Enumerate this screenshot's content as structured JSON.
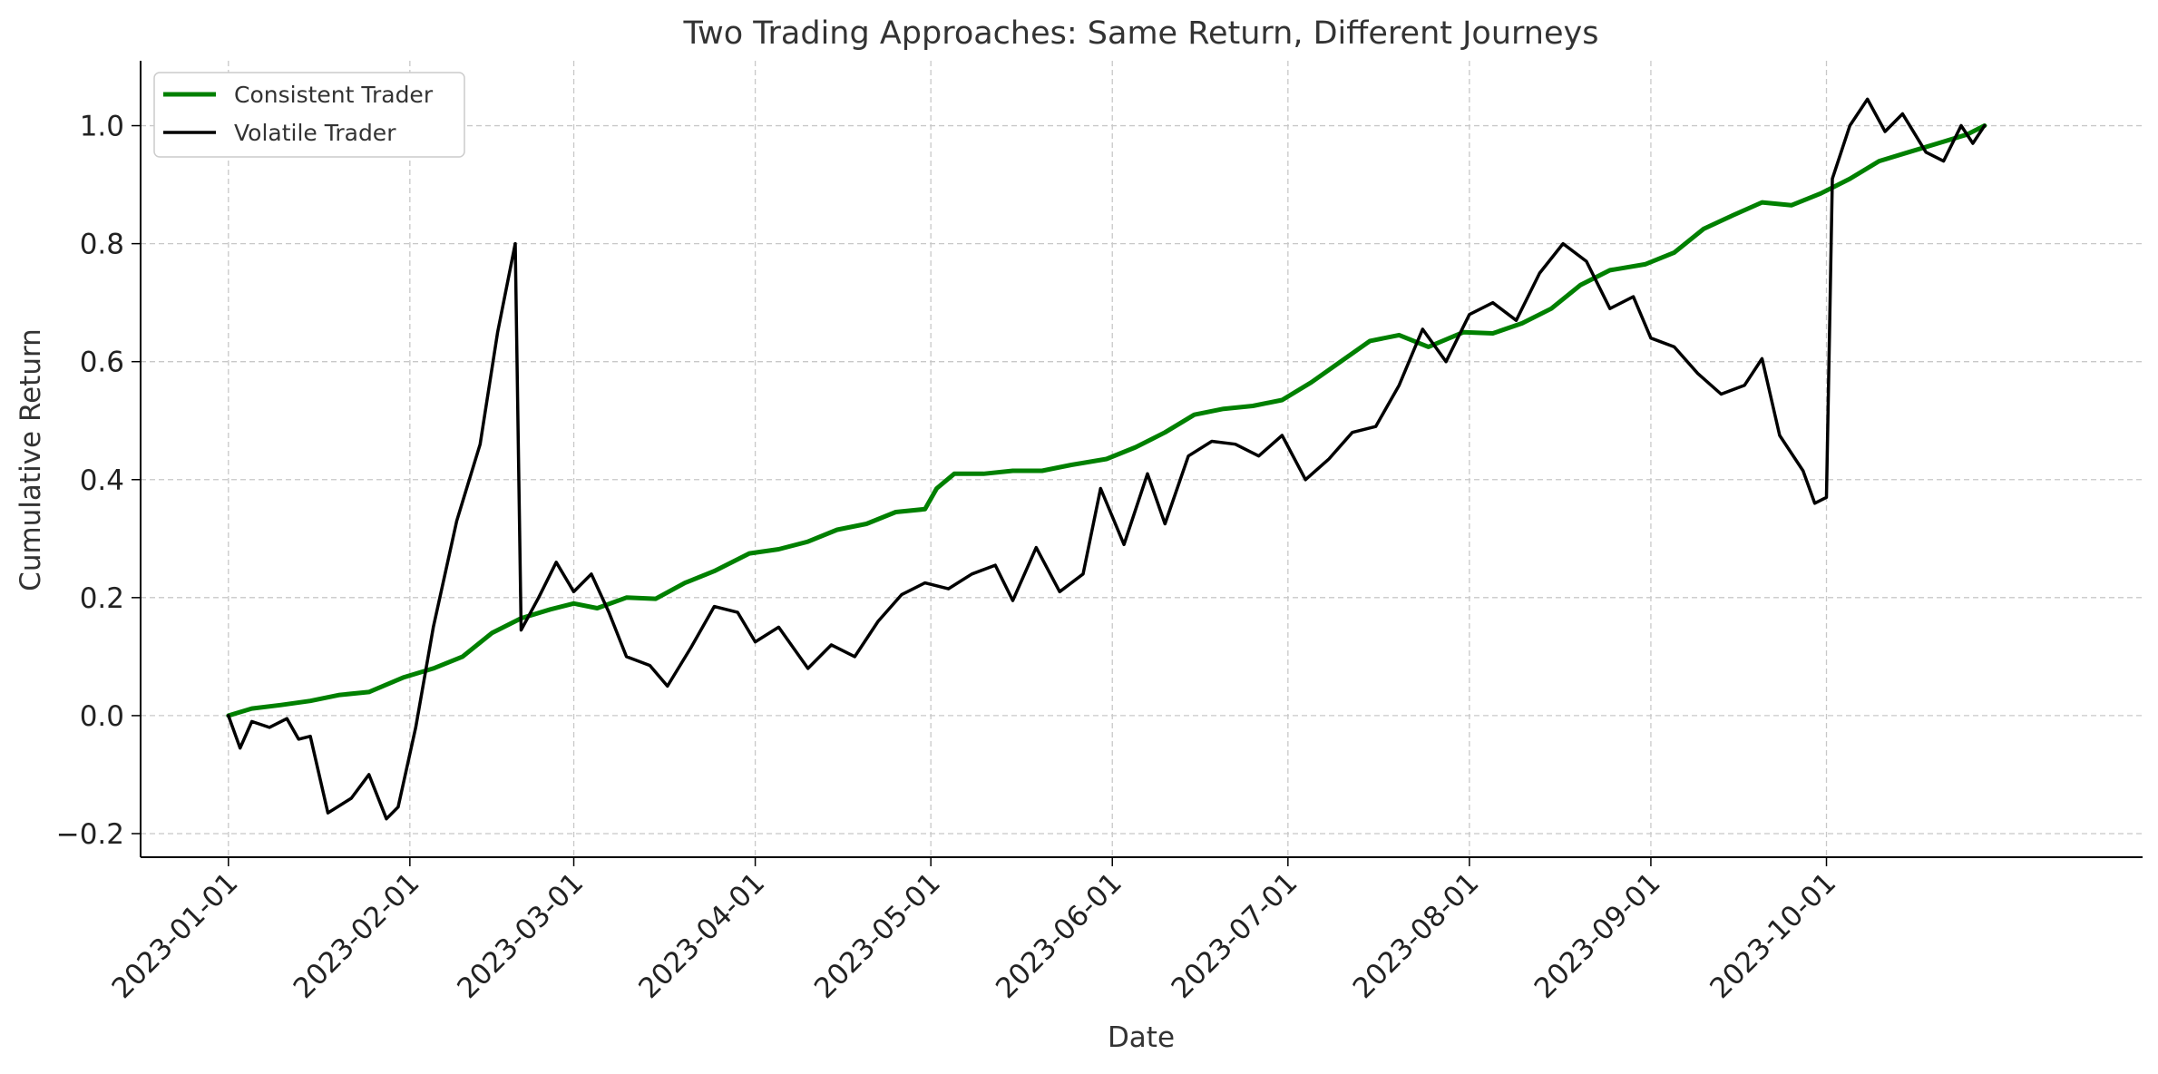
{
  "chart_data": {
    "type": "line",
    "title": "Two Trading Approaches: Same Return, Different Journeys",
    "xlabel": "Date",
    "ylabel": "Cumulative Return",
    "x_range": [
      "2022-12-17",
      "2023-11-24"
    ],
    "ylim": [
      -0.24,
      1.11
    ],
    "x_ticks": [
      "2023-01-01",
      "2023-02-01",
      "2023-03-01",
      "2023-04-01",
      "2023-05-01",
      "2023-06-01",
      "2023-07-01",
      "2023-08-01",
      "2023-09-01",
      "2023-10-01"
    ],
    "y_ticks": [
      -0.2,
      0.0,
      0.2,
      0.4,
      0.6,
      0.8,
      1.0
    ],
    "y_tick_labels": [
      "−0.2",
      "0.0",
      "0.2",
      "0.4",
      "0.6",
      "0.8",
      "1.0"
    ],
    "grid": true,
    "legend_position": "upper left",
    "series": [
      {
        "name": "Consistent Trader",
        "color": "#008000",
        "points": [
          [
            "2023-01-01",
            0.0
          ],
          [
            "2023-01-05",
            0.012
          ],
          [
            "2023-01-10",
            0.018
          ],
          [
            "2023-01-15",
            0.025
          ],
          [
            "2023-01-20",
            0.035
          ],
          [
            "2023-01-25",
            0.04
          ],
          [
            "2023-01-31",
            0.065
          ],
          [
            "2023-02-05",
            0.08
          ],
          [
            "2023-02-10",
            0.1
          ],
          [
            "2023-02-15",
            0.14
          ],
          [
            "2023-02-20",
            0.165
          ],
          [
            "2023-02-25",
            0.18
          ],
          [
            "2023-03-01",
            0.19
          ],
          [
            "2023-03-05",
            0.182
          ],
          [
            "2023-03-10",
            0.2
          ],
          [
            "2023-03-15",
            0.198
          ],
          [
            "2023-03-20",
            0.225
          ],
          [
            "2023-03-25",
            0.245
          ],
          [
            "2023-03-31",
            0.275
          ],
          [
            "2023-04-05",
            0.282
          ],
          [
            "2023-04-10",
            0.295
          ],
          [
            "2023-04-15",
            0.315
          ],
          [
            "2023-04-20",
            0.325
          ],
          [
            "2023-04-25",
            0.345
          ],
          [
            "2023-04-30",
            0.35
          ],
          [
            "2023-05-02",
            0.385
          ],
          [
            "2023-05-05",
            0.41
          ],
          [
            "2023-05-10",
            0.41
          ],
          [
            "2023-05-15",
            0.415
          ],
          [
            "2023-05-20",
            0.415
          ],
          [
            "2023-05-25",
            0.425
          ],
          [
            "2023-05-31",
            0.435
          ],
          [
            "2023-06-05",
            0.455
          ],
          [
            "2023-06-10",
            0.48
          ],
          [
            "2023-06-15",
            0.51
          ],
          [
            "2023-06-20",
            0.52
          ],
          [
            "2023-06-25",
            0.525
          ],
          [
            "2023-06-30",
            0.535
          ],
          [
            "2023-07-05",
            0.565
          ],
          [
            "2023-07-10",
            0.6
          ],
          [
            "2023-07-15",
            0.635
          ],
          [
            "2023-07-20",
            0.645
          ],
          [
            "2023-07-25",
            0.625
          ],
          [
            "2023-07-31",
            0.65
          ],
          [
            "2023-08-05",
            0.648
          ],
          [
            "2023-08-10",
            0.665
          ],
          [
            "2023-08-15",
            0.69
          ],
          [
            "2023-08-20",
            0.73
          ],
          [
            "2023-08-25",
            0.755
          ],
          [
            "2023-08-31",
            0.765
          ],
          [
            "2023-09-05",
            0.785
          ],
          [
            "2023-09-10",
            0.825
          ],
          [
            "2023-09-15",
            0.848
          ],
          [
            "2023-09-20",
            0.87
          ],
          [
            "2023-09-25",
            0.865
          ],
          [
            "2023-09-30",
            0.885
          ],
          [
            "2023-10-05",
            0.91
          ],
          [
            "2023-10-10",
            0.94
          ],
          [
            "2023-10-15",
            0.955
          ],
          [
            "2023-10-20",
            0.97
          ],
          [
            "2023-10-25",
            0.985
          ],
          [
            "2023-10-28",
            1.0
          ]
        ]
      },
      {
        "name": "Volatile Trader",
        "color": "#000000",
        "points": [
          [
            "2023-01-01",
            0.0
          ],
          [
            "2023-01-03",
            -0.055
          ],
          [
            "2023-01-05",
            -0.01
          ],
          [
            "2023-01-08",
            -0.02
          ],
          [
            "2023-01-11",
            -0.005
          ],
          [
            "2023-01-13",
            -0.04
          ],
          [
            "2023-01-15",
            -0.035
          ],
          [
            "2023-01-18",
            -0.165
          ],
          [
            "2023-01-22",
            -0.14
          ],
          [
            "2023-01-25",
            -0.1
          ],
          [
            "2023-01-28",
            -0.175
          ],
          [
            "2023-01-30",
            -0.155
          ],
          [
            "2023-02-02",
            -0.02
          ],
          [
            "2023-02-05",
            0.15
          ],
          [
            "2023-02-09",
            0.33
          ],
          [
            "2023-02-13",
            0.46
          ],
          [
            "2023-02-16",
            0.65
          ],
          [
            "2023-02-19",
            0.8
          ],
          [
            "2023-02-20",
            0.145
          ],
          [
            "2023-02-23",
            0.2
          ],
          [
            "2023-02-26",
            0.26
          ],
          [
            "2023-03-01",
            0.21
          ],
          [
            "2023-03-04",
            0.24
          ],
          [
            "2023-03-07",
            0.175
          ],
          [
            "2023-03-10",
            0.1
          ],
          [
            "2023-03-14",
            0.085
          ],
          [
            "2023-03-17",
            0.05
          ],
          [
            "2023-03-21",
            0.115
          ],
          [
            "2023-03-25",
            0.185
          ],
          [
            "2023-03-29",
            0.175
          ],
          [
            "2023-04-01",
            0.125
          ],
          [
            "2023-04-05",
            0.15
          ],
          [
            "2023-04-10",
            0.08
          ],
          [
            "2023-04-14",
            0.12
          ],
          [
            "2023-04-18",
            0.1
          ],
          [
            "2023-04-22",
            0.16
          ],
          [
            "2023-04-26",
            0.205
          ],
          [
            "2023-04-30",
            0.225
          ],
          [
            "2023-05-04",
            0.215
          ],
          [
            "2023-05-08",
            0.24
          ],
          [
            "2023-05-12",
            0.255
          ],
          [
            "2023-05-15",
            0.195
          ],
          [
            "2023-05-19",
            0.285
          ],
          [
            "2023-05-23",
            0.21
          ],
          [
            "2023-05-27",
            0.24
          ],
          [
            "2023-05-30",
            0.385
          ],
          [
            "2023-06-03",
            0.29
          ],
          [
            "2023-06-07",
            0.41
          ],
          [
            "2023-06-10",
            0.325
          ],
          [
            "2023-06-14",
            0.44
          ],
          [
            "2023-06-18",
            0.465
          ],
          [
            "2023-06-22",
            0.46
          ],
          [
            "2023-06-26",
            0.44
          ],
          [
            "2023-06-30",
            0.475
          ],
          [
            "2023-07-04",
            0.4
          ],
          [
            "2023-07-08",
            0.435
          ],
          [
            "2023-07-12",
            0.48
          ],
          [
            "2023-07-16",
            0.49
          ],
          [
            "2023-07-20",
            0.56
          ],
          [
            "2023-07-24",
            0.655
          ],
          [
            "2023-07-28",
            0.6
          ],
          [
            "2023-08-01",
            0.68
          ],
          [
            "2023-08-05",
            0.7
          ],
          [
            "2023-08-09",
            0.67
          ],
          [
            "2023-08-13",
            0.75
          ],
          [
            "2023-08-17",
            0.8
          ],
          [
            "2023-08-21",
            0.77
          ],
          [
            "2023-08-25",
            0.69
          ],
          [
            "2023-08-29",
            0.71
          ],
          [
            "2023-09-01",
            0.64
          ],
          [
            "2023-09-05",
            0.625
          ],
          [
            "2023-09-09",
            0.58
          ],
          [
            "2023-09-13",
            0.545
          ],
          [
            "2023-09-17",
            0.56
          ],
          [
            "2023-09-20",
            0.605
          ],
          [
            "2023-09-23",
            0.475
          ],
          [
            "2023-09-27",
            0.415
          ],
          [
            "2023-09-29",
            0.36
          ],
          [
            "2023-10-01",
            0.37
          ],
          [
            "2023-10-02",
            0.91
          ],
          [
            "2023-10-05",
            1.0
          ],
          [
            "2023-10-08",
            1.045
          ],
          [
            "2023-10-11",
            0.99
          ],
          [
            "2023-10-14",
            1.02
          ],
          [
            "2023-10-18",
            0.955
          ],
          [
            "2023-10-21",
            0.94
          ],
          [
            "2023-10-24",
            1.0
          ],
          [
            "2023-10-26",
            0.97
          ],
          [
            "2023-10-28",
            1.0
          ]
        ]
      }
    ]
  }
}
